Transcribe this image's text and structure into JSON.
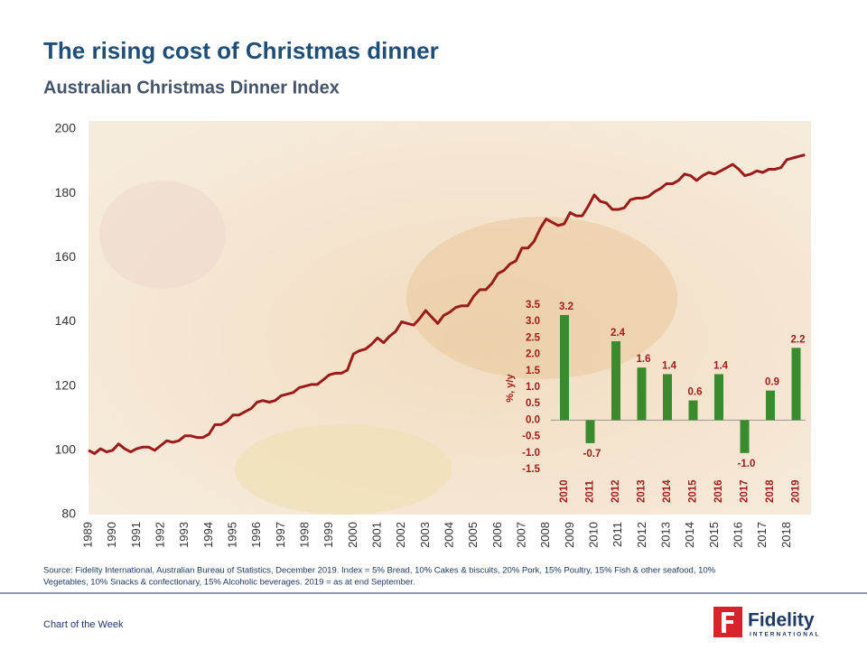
{
  "header": {
    "title": "The rising cost of Christmas dinner",
    "subtitle": "Australian Christmas Dinner Index"
  },
  "chart_data": [
    {
      "type": "line",
      "color": "#9b1b1b",
      "x": [
        1989,
        1989.25,
        1989.5,
        1989.75,
        1990,
        1990.25,
        1990.5,
        1990.75,
        1991,
        1991.25,
        1991.5,
        1991.75,
        1992,
        1992.25,
        1992.5,
        1992.75,
        1993,
        1993.25,
        1993.5,
        1993.75,
        1994,
        1994.25,
        1994.5,
        1994.75,
        1995,
        1995.25,
        1995.5,
        1995.75,
        1996,
        1996.25,
        1996.5,
        1996.75,
        1997,
        1997.25,
        1997.5,
        1997.75,
        1998,
        1998.25,
        1998.5,
        1998.75,
        1999,
        1999.25,
        1999.5,
        1999.75,
        2000,
        2000.25,
        2000.5,
        2000.75,
        2001,
        2001.25,
        2001.5,
        2001.75,
        2002,
        2002.25,
        2002.5,
        2002.75,
        2003,
        2003.25,
        2003.5,
        2003.75,
        2004,
        2004.25,
        2004.5,
        2004.75,
        2005,
        2005.25,
        2005.5,
        2005.75,
        2006,
        2006.25,
        2006.5,
        2006.75,
        2007,
        2007.25,
        2007.5,
        2007.75,
        2008,
        2008.25,
        2008.5,
        2008.75,
        2009,
        2009.25,
        2009.5,
        2009.75,
        2010,
        2010.25,
        2010.5,
        2010.75,
        2011,
        2011.25,
        2011.5,
        2011.75,
        2012,
        2012.25,
        2012.5,
        2012.75,
        2013,
        2013.25,
        2013.5,
        2013.75,
        2014,
        2014.25,
        2014.5,
        2014.75,
        2015,
        2015.25,
        2015.5,
        2015.75,
        2016,
        2016.25,
        2016.5,
        2016.75,
        2017,
        2017.25,
        2017.5,
        2017.75,
        2018,
        2018.25,
        2018.5,
        2018.75
      ],
      "values": [
        100,
        99,
        100.5,
        99.5,
        100,
        102,
        100.5,
        99.5,
        100.5,
        101,
        101,
        100,
        101.5,
        103,
        102.5,
        103,
        104.5,
        104.5,
        104,
        104,
        105,
        108,
        108,
        109,
        111,
        111,
        112,
        113,
        115,
        115.5,
        115,
        115.5,
        117,
        117.5,
        118,
        119.5,
        120,
        120.5,
        120.5,
        122,
        123.5,
        124,
        124,
        125,
        130,
        131,
        131.5,
        133,
        135,
        133.5,
        135.5,
        137,
        140,
        139.5,
        139,
        141,
        143.5,
        141.5,
        139.5,
        142,
        143,
        144.5,
        145,
        145,
        148,
        150,
        150,
        152,
        155,
        156,
        158,
        159,
        163,
        163,
        165,
        169,
        172,
        171,
        170,
        170.5,
        174,
        173,
        173,
        176,
        179.5,
        177.5,
        177,
        175,
        175,
        175.5,
        178,
        178.5,
        178.5,
        179,
        180.5,
        181.5,
        183,
        183,
        184,
        186,
        185.5,
        184,
        185.5,
        186.5,
        186,
        187,
        188,
        189,
        187.5,
        185.5,
        186,
        187,
        186.5,
        187.5,
        187.5,
        188,
        190.5,
        191,
        191.5,
        192
      ],
      "xlim": [
        1989,
        2019
      ],
      "xticks": [
        1989,
        1990,
        1991,
        1992,
        1993,
        1994,
        1995,
        1996,
        1997,
        1998,
        1999,
        2000,
        2001,
        2002,
        2003,
        2004,
        2005,
        2006,
        2007,
        2008,
        2009,
        2010,
        2011,
        2012,
        2013,
        2014,
        2015,
        2016,
        2017,
        2018
      ],
      "ylim": [
        80,
        200
      ],
      "yticks": [
        80,
        100,
        120,
        140,
        160,
        180,
        200
      ]
    },
    {
      "type": "bar",
      "color": "#3a8a2e",
      "y_label": "%, y/y",
      "categories": [
        "2010",
        "2011",
        "2012",
        "2013",
        "2014",
        "2015",
        "2016",
        "2017",
        "2018",
        "2019"
      ],
      "values": [
        3.2,
        -0.7,
        2.4,
        1.6,
        1.4,
        0.6,
        1.4,
        -1.0,
        0.9,
        2.2
      ],
      "value_labels": [
        "3.2",
        "-0.7",
        "2.4",
        "1.6",
        "1.4",
        "0.6",
        "1.4",
        "-1.0",
        "0.9",
        "2.2"
      ],
      "ylim": [
        -1.5,
        3.5
      ],
      "yticks": [
        3.5,
        {
          "value": 3,
          "label": "3.0"
        },
        2.5,
        {
          "value": 2,
          "label": "2.0"
        },
        1.5,
        {
          "value": 1,
          "label": "1.0"
        },
        0.5,
        {
          "value": 0,
          "label": "0.0"
        },
        -0.5,
        {
          "value": -1,
          "label": "-1.0"
        },
        -1.5
      ]
    }
  ],
  "footer": {
    "source": [
      "Source: Fidelity International,  Australian Bureau of Statistics, December 2019. Index = 5% Bread, 10% Cakes & biscuits, 20% Pork, 15% Poultry, 15% Fish & other seafood, 10%",
      "Vegetables, 10% Snacks &  confectionary, 15% Alcoholic beverages. 2019 =  as at end September."
    ],
    "series_name": "Chart of the Week",
    "logo": "Fidelity",
    "logo_sub": "INTERNATIONAL"
  }
}
